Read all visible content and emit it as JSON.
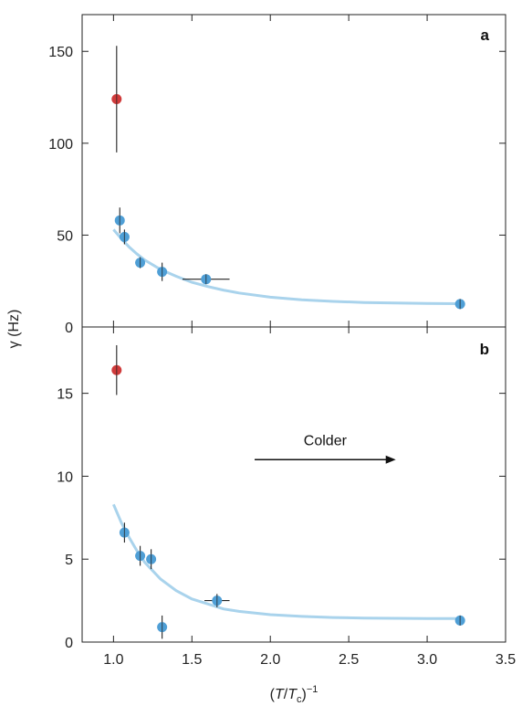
{
  "chart_data": [
    {
      "type": "scatter",
      "panel_label": "a",
      "ylabel": "γ (Hz)",
      "xlim": [
        0.8,
        3.5
      ],
      "ylim": [
        0,
        170
      ],
      "yticks": [
        0,
        50,
        100,
        150
      ],
      "colors": {
        "highlight": "#d03b3b",
        "points": "#4f9fd6",
        "fit": "#a9d3ec"
      },
      "highlight_points": [
        {
          "x": 1.02,
          "y": 124,
          "yerr": 29,
          "xerr": 0
        }
      ],
      "points": [
        {
          "x": 1.04,
          "y": 58,
          "yerr": 7,
          "xerr": 0
        },
        {
          "x": 1.07,
          "y": 49,
          "yerr": 4,
          "xerr": 0
        },
        {
          "x": 1.17,
          "y": 35,
          "yerr": 3,
          "xerr": 0.03
        },
        {
          "x": 1.31,
          "y": 30,
          "yerr": 5,
          "xerr": 0.03
        },
        {
          "x": 1.59,
          "y": 26,
          "yerr": 2,
          "xerr": 0.15
        },
        {
          "x": 3.21,
          "y": 12.5,
          "yerr": 2,
          "xerr": 0.03
        }
      ],
      "fit_curve": {
        "x": [
          1.0,
          1.05,
          1.1,
          1.15,
          1.2,
          1.3,
          1.4,
          1.5,
          1.6,
          1.7,
          1.8,
          2.0,
          2.2,
          2.4,
          2.6,
          2.8,
          3.0,
          3.2
        ],
        "y": [
          53,
          48,
          43.5,
          39.7,
          36.4,
          31.3,
          27.6,
          24.3,
          22.0,
          20.1,
          18.5,
          16.2,
          14.8,
          13.9,
          13.3,
          13.0,
          12.8,
          12.7
        ]
      }
    },
    {
      "type": "scatter",
      "panel_label": "b",
      "xlabel": "(T/T_c)^-1",
      "xlim": [
        0.8,
        3.5
      ],
      "ylim": [
        0,
        19
      ],
      "xticks": [
        1.0,
        1.5,
        2.0,
        2.5,
        3.0,
        3.5
      ],
      "xtick_labels": [
        "1.0",
        "1.5",
        "2.0",
        "2.5",
        "3.0",
        "3.5"
      ],
      "yticks": [
        0,
        5,
        10,
        15
      ],
      "colors": {
        "highlight": "#d03b3b",
        "points": "#4f9fd6",
        "fit": "#a9d3ec"
      },
      "highlight_points": [
        {
          "x": 1.02,
          "y": 16.4,
          "yerr": 1.5,
          "xerr": 0
        }
      ],
      "points": [
        {
          "x": 1.07,
          "y": 6.6,
          "yerr": 0.6,
          "xerr": 0.02
        },
        {
          "x": 1.17,
          "y": 5.2,
          "yerr": 0.6,
          "xerr": 0.03
        },
        {
          "x": 1.24,
          "y": 5.0,
          "yerr": 0.6,
          "xerr": 0.03
        },
        {
          "x": 1.31,
          "y": 0.9,
          "yerr": 0.7,
          "xerr": 0
        },
        {
          "x": 1.66,
          "y": 2.5,
          "yerr": 0.4,
          "xerr": 0.08
        },
        {
          "x": 3.21,
          "y": 1.3,
          "yerr": 0.3,
          "xerr": 0.02
        }
      ],
      "fit_curve": {
        "x": [
          1.0,
          1.05,
          1.1,
          1.15,
          1.2,
          1.3,
          1.4,
          1.5,
          1.6,
          1.7,
          1.8,
          2.0,
          2.2,
          2.4,
          2.6,
          2.8,
          3.0,
          3.2
        ],
        "y": [
          8.3,
          7.2,
          6.3,
          5.5,
          4.8,
          3.8,
          3.1,
          2.6,
          2.3,
          2.0,
          1.85,
          1.65,
          1.55,
          1.48,
          1.45,
          1.43,
          1.42,
          1.42
        ]
      },
      "annotation": {
        "text": "Colder",
        "arrow_from": [
          1.9,
          11.0
        ],
        "arrow_to": [
          2.8,
          11.0
        ]
      }
    }
  ]
}
